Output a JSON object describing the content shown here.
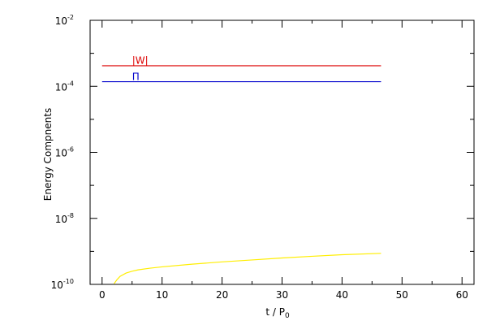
{
  "chart_data": {
    "type": "line",
    "title": "",
    "xlabel": "t / P",
    "xlabel_sub": "0",
    "ylabel": "Energy Compnents",
    "xlim": [
      -2,
      62
    ],
    "ylim": [
      1e-10,
      0.01
    ],
    "yscale": "log",
    "grid": false,
    "x_ticks": [
      0,
      10,
      20,
      30,
      40,
      50,
      60
    ],
    "y_ticks": [
      {
        "mantissa": "10",
        "exp": "-10",
        "value": 1e-10
      },
      {
        "mantissa": "10",
        "exp": "-8",
        "value": 1e-08
      },
      {
        "mantissa": "10",
        "exp": "-6",
        "value": 1e-06
      },
      {
        "mantissa": "10",
        "exp": "-4",
        "value": 0.0001
      },
      {
        "mantissa": "10",
        "exp": "-2",
        "value": 0.01
      }
    ],
    "series": [
      {
        "name": "|W|",
        "color": "#dd0000",
        "label_at": [
          5,
          0.00048
        ],
        "x": [
          0,
          46.5
        ],
        "y": [
          0.00042,
          0.00042
        ]
      },
      {
        "name": "Π",
        "color": "#0000cc",
        "label_at": [
          5,
          0.000155
        ],
        "x": [
          0,
          46.5
        ],
        "y": [
          0.000138,
          0.000138
        ]
      },
      {
        "name": "",
        "color": "#ffee00",
        "x": [
          2,
          2.5,
          3,
          4,
          5,
          6,
          8,
          10,
          15,
          20,
          25,
          30,
          35,
          40,
          46.5
        ],
        "y": [
          1.05e-10,
          1.4e-10,
          1.75e-10,
          2.2e-10,
          2.5e-10,
          2.75e-10,
          3.1e-10,
          3.4e-10,
          4.1e-10,
          4.8e-10,
          5.5e-10,
          6.3e-10,
          7.1e-10,
          7.9e-10,
          8.7e-10
        ]
      }
    ]
  }
}
